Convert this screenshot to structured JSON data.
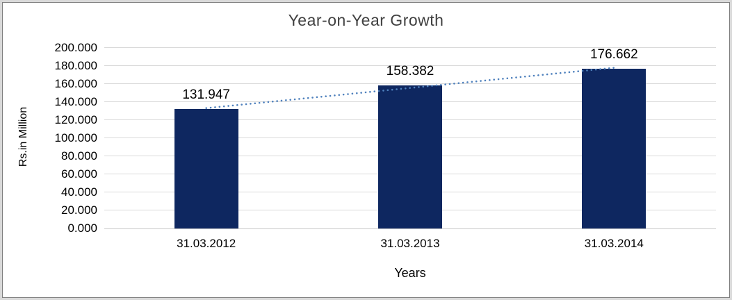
{
  "frame": {
    "background": "#d9d9d9",
    "border_color": "#7f7f7f",
    "surface_color": "#ffffff"
  },
  "chart_data": {
    "type": "bar",
    "title": "Year-on-Year Growth",
    "xlabel": "Years",
    "ylabel": "Rs.in Million",
    "categories": [
      "31.03.2012",
      "31.03.2013",
      "31.03.2014"
    ],
    "values": [
      131.947,
      158.382,
      176.662
    ],
    "data_labels": [
      "131.947",
      "158.382",
      "176.662"
    ],
    "ylim": [
      0,
      200
    ],
    "ytick_step": 20,
    "ytick_labels": [
      "0.000",
      "20.000",
      "40.000",
      "60.000",
      "80.000",
      "100.000",
      "120.000",
      "140.000",
      "160.000",
      "180.000",
      "200.000"
    ],
    "grid": true,
    "legend": "none",
    "trendline": {
      "type": "linear",
      "style": "dotted",
      "color": "#4f81bd",
      "fit_endpoints": [
        133.306,
        178.021
      ]
    },
    "colors": {
      "bar": "#0e2760",
      "gridline": "#d9d9d9",
      "axis_line": "#c9c9c9",
      "text": "#000000",
      "title_text": "#404040"
    }
  }
}
